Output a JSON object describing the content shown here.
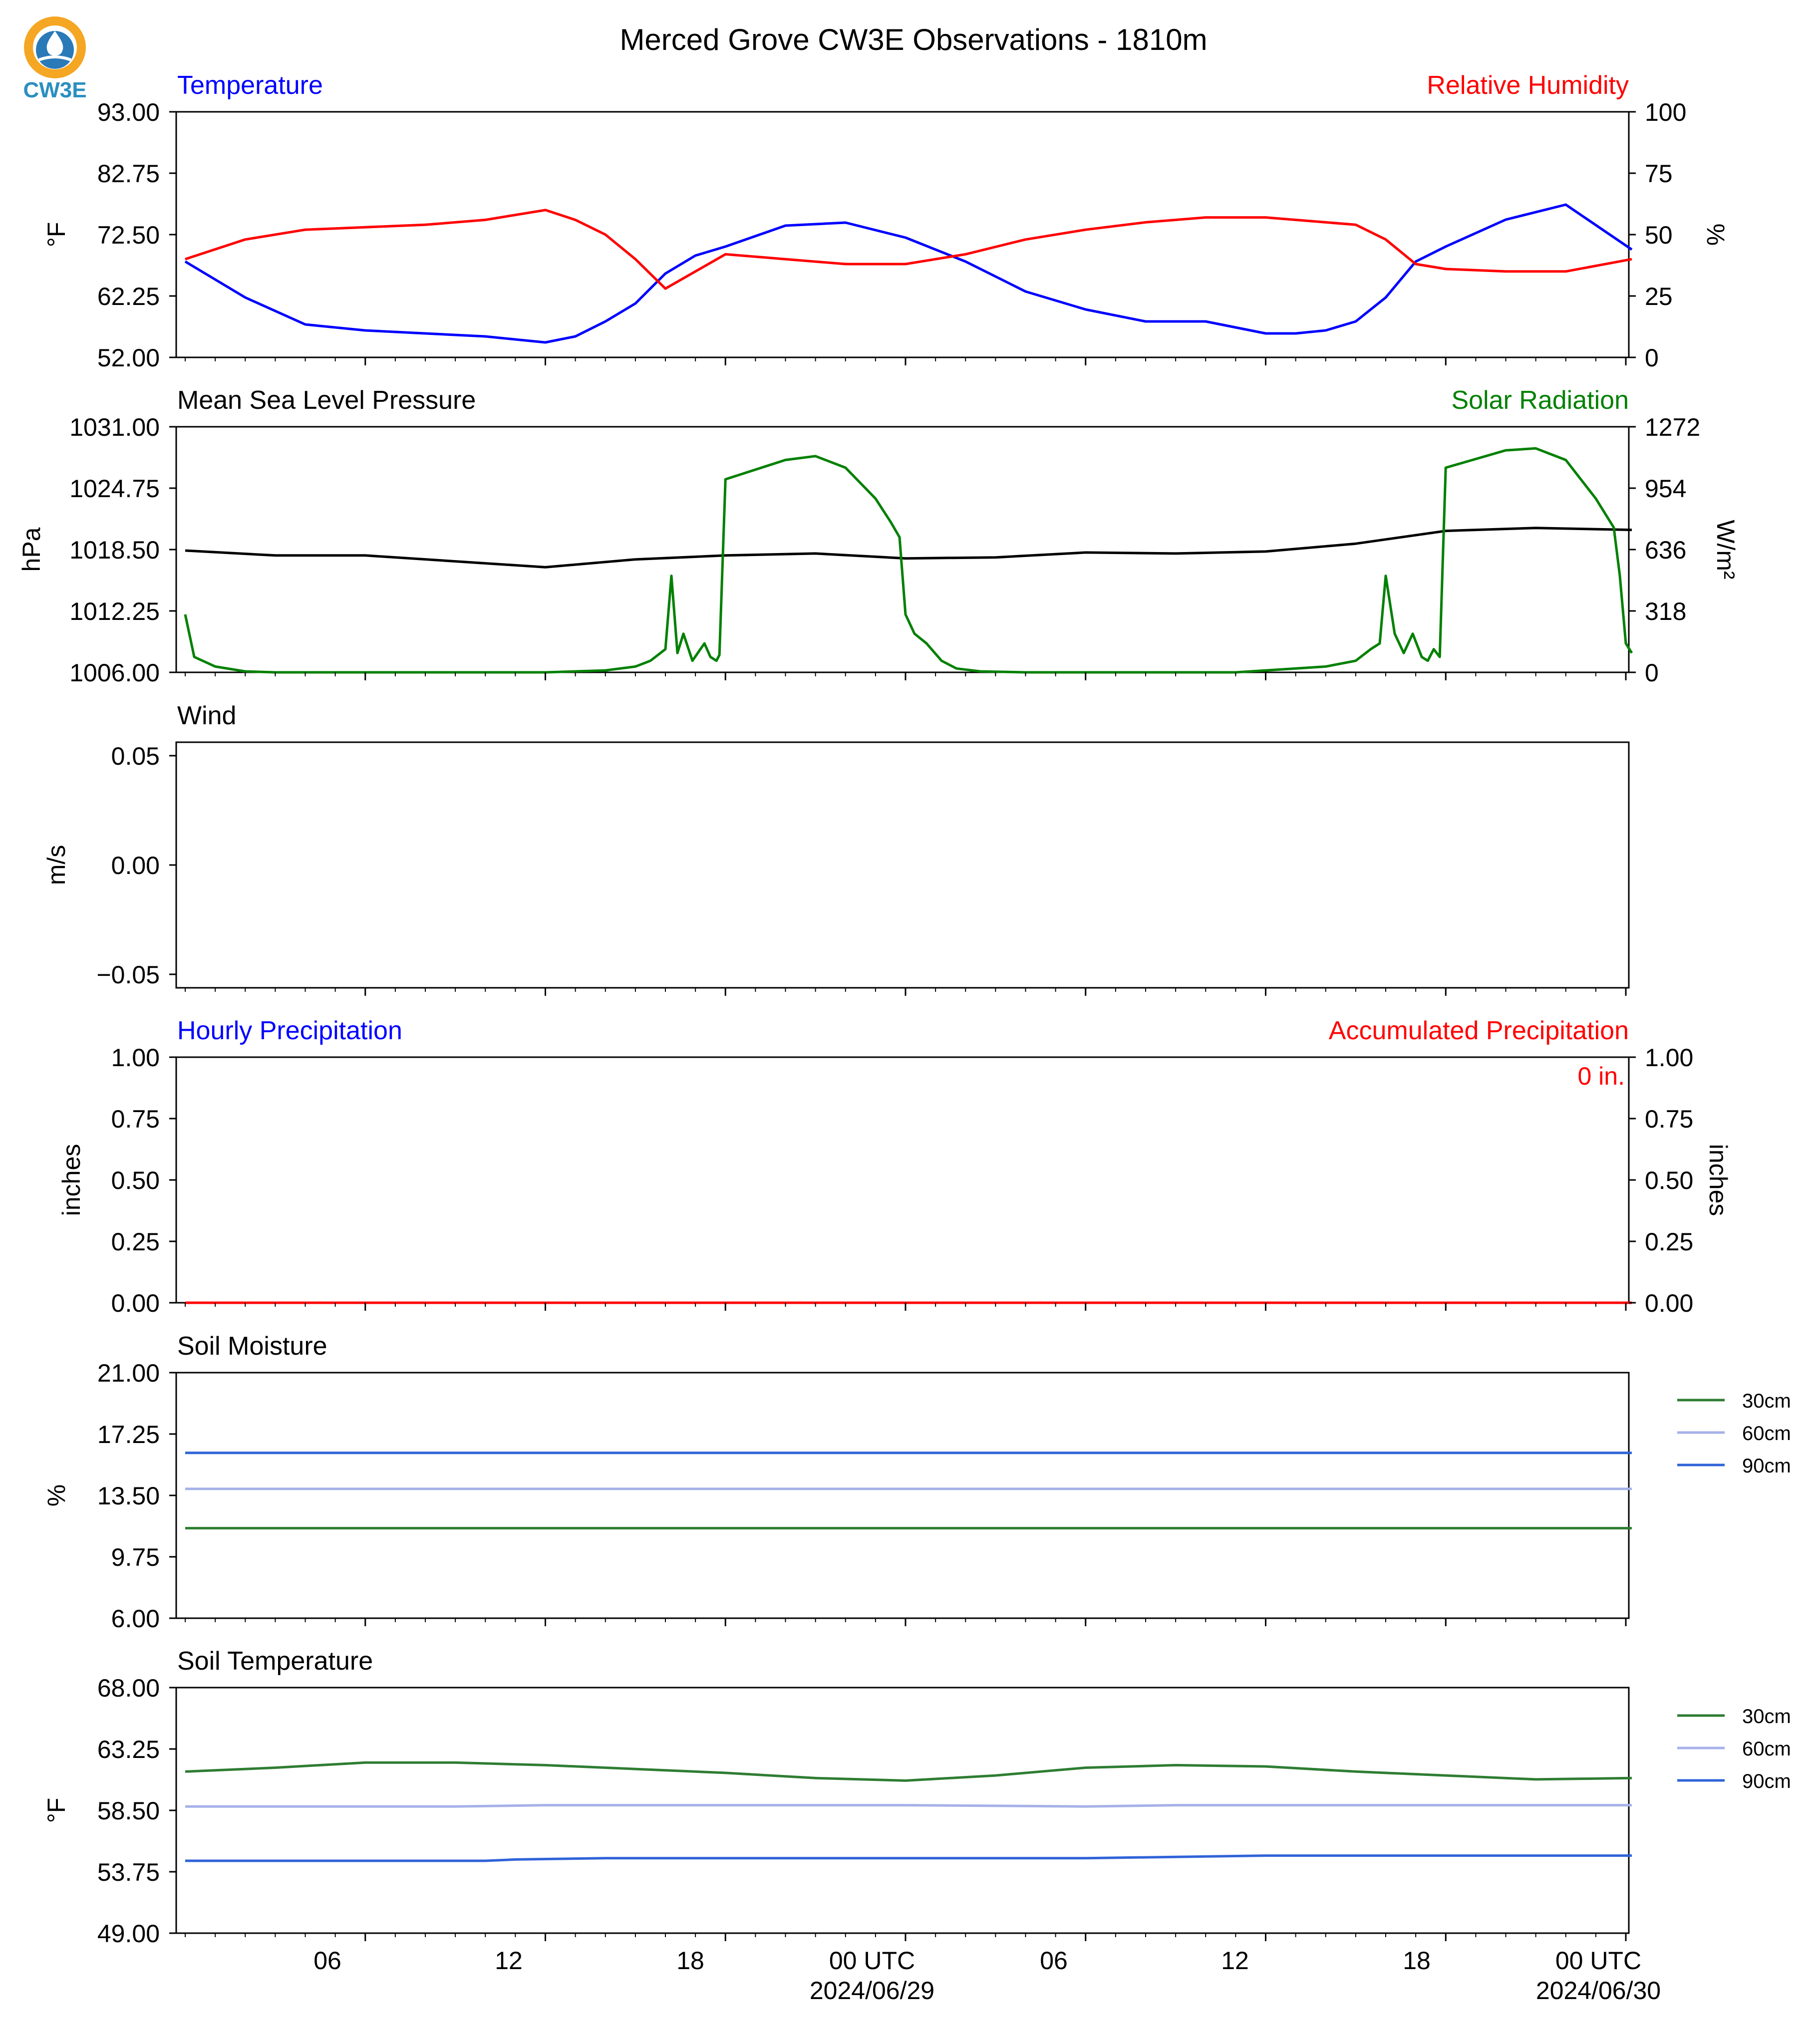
{
  "title": "Merced Grove CW3E Observations - 1810m",
  "logo": {
    "text": "CW3E",
    "icon": "cw3e-logo-icon"
  },
  "colors": {
    "temp": "#0000ff",
    "rh": "#ff0000",
    "mslp": "#000000",
    "solar": "#008000",
    "soil30": "#2e7d32",
    "soil60": "#a5b1e8",
    "soil90": "#2f63d8",
    "accum": "#ff0000"
  },
  "x_axis": {
    "ticks": [
      {
        "label": "06",
        "sub": ""
      },
      {
        "label": "12",
        "sub": ""
      },
      {
        "label": "18",
        "sub": ""
      },
      {
        "label": "00 UTC",
        "sub": "2024/06/29"
      },
      {
        "label": "06",
        "sub": ""
      },
      {
        "label": "12",
        "sub": ""
      },
      {
        "label": "18",
        "sub": ""
      },
      {
        "label": "00 UTC",
        "sub": "2024/06/30"
      }
    ]
  },
  "chart_data": [
    {
      "type": "line",
      "title_left": "Temperature",
      "title_right": "Relative Humidity",
      "ylabel": "°F",
      "ylabel_right": "%",
      "ylim": [
        52,
        93
      ],
      "ylim_right": [
        0,
        100
      ],
      "yticks": [
        "93.00",
        "82.75",
        "72.50",
        "62.25",
        "52.00"
      ],
      "yticks_right": [
        "100",
        "75",
        "50",
        "25",
        "0"
      ],
      "x_hours": [
        0,
        2,
        4,
        6,
        8,
        10,
        12,
        13,
        14,
        15,
        16,
        17,
        18,
        20,
        22,
        24,
        26,
        28,
        30,
        32,
        34,
        36,
        37,
        38,
        39,
        40,
        41,
        42,
        44,
        46,
        48.2
      ],
      "series": [
        {
          "name": "Temperature",
          "axis": "left",
          "values": [
            68,
            62,
            57.5,
            56.5,
            56,
            55.5,
            54.5,
            55.5,
            58,
            61,
            66,
            69,
            70.5,
            74,
            74.5,
            72,
            68,
            63,
            60,
            58,
            58,
            56,
            56,
            56.5,
            58,
            62,
            68,
            70.5,
            75,
            77.5,
            70
          ]
        },
        {
          "name": "Relative Humidity",
          "axis": "right",
          "values": [
            40,
            48,
            52,
            53,
            54,
            56,
            60,
            56,
            50,
            40,
            28,
            35,
            42,
            40,
            38,
            38,
            42,
            48,
            52,
            55,
            57,
            57,
            56,
            55,
            54,
            48,
            38,
            36,
            35,
            35,
            40
          ]
        }
      ]
    },
    {
      "type": "line",
      "title_left": "Mean Sea Level Pressure",
      "title_right": "Solar Radiation",
      "ylabel": "hPa",
      "ylabel_right": "W/m²",
      "ylim": [
        1006,
        1031
      ],
      "ylim_right": [
        0,
        1272
      ],
      "yticks": [
        "1031.00",
        "1024.75",
        "1018.50",
        "1012.25",
        "1006.00"
      ],
      "yticks_right": [
        "1272",
        "954",
        "636",
        "318",
        "0"
      ],
      "series": [
        {
          "name": "Mean Sea Level Pressure",
          "axis": "left",
          "x": [
            0,
            3,
            6,
            9,
            12,
            15,
            18,
            21,
            24,
            27,
            30,
            33,
            36,
            39,
            42,
            45,
            48.2
          ],
          "values": [
            1018.4,
            1017.9,
            1017.9,
            1017.3,
            1016.7,
            1017.5,
            1017.9,
            1018.1,
            1017.6,
            1017.7,
            1018.2,
            1018.1,
            1018.3,
            1019.1,
            1020.4,
            1020.7,
            1020.5
          ]
        },
        {
          "name": "Solar Radiation",
          "axis": "right",
          "x": [
            0,
            0.3,
            1,
            2,
            3,
            6,
            10,
            12,
            14,
            15,
            15.5,
            16,
            16.2,
            16.4,
            16.6,
            16.9,
            17.3,
            17.5,
            17.7,
            17.8,
            18,
            20,
            21,
            22,
            23,
            23.5,
            23.8,
            24,
            24.3,
            24.7,
            25.2,
            25.7,
            26.5,
            28,
            30,
            35,
            38,
            39,
            39.5,
            39.8,
            40,
            40.3,
            40.6,
            40.9,
            41.2,
            41.4,
            41.6,
            41.8,
            42,
            44,
            45,
            46,
            47,
            47.6,
            47.8,
            48,
            48.2
          ],
          "values": [
            300,
            80,
            30,
            5,
            0,
            0,
            0,
            0,
            10,
            30,
            60,
            120,
            500,
            100,
            200,
            60,
            150,
            80,
            60,
            90,
            1000,
            1100,
            1120,
            1060,
            900,
            780,
            700,
            300,
            200,
            150,
            60,
            20,
            5,
            0,
            0,
            0,
            30,
            60,
            120,
            150,
            500,
            200,
            100,
            200,
            80,
            60,
            120,
            80,
            1060,
            1150,
            1160,
            1100,
            900,
            750,
            500,
            150,
            100
          ]
        }
      ]
    },
    {
      "type": "line",
      "title_left": "Wind",
      "ylabel": "m/s",
      "ylim": [
        -0.055,
        0.055
      ],
      "yticks": [
        "0.05",
        "0.00",
        "−0.05"
      ],
      "series": []
    },
    {
      "type": "line",
      "title_left": "Hourly Precipitation",
      "title_right": "Accumulated Precipitation",
      "ylabel": "inches",
      "ylabel_right": "inches",
      "ylim": [
        0,
        1
      ],
      "ylim_right": [
        0,
        1
      ],
      "yticks": [
        "1.00",
        "0.75",
        "0.50",
        "0.25",
        "0.00"
      ],
      "yticks_right": [
        "1.00",
        "0.75",
        "0.50",
        "0.25",
        "0.00"
      ],
      "annotation": "0 in.",
      "series": [
        {
          "name": "Hourly Precipitation",
          "axis": "left",
          "x": [
            0,
            48.2
          ],
          "values": [
            0,
            0
          ]
        },
        {
          "name": "Accumulated Precipitation",
          "axis": "right",
          "x": [
            0,
            48.2
          ],
          "values": [
            0,
            0
          ]
        }
      ]
    },
    {
      "type": "line",
      "title_left": "Soil Moisture",
      "ylabel": "%",
      "ylim": [
        6,
        21
      ],
      "yticks": [
        "21.00",
        "17.25",
        "13.50",
        "9.75",
        "6.00"
      ],
      "legend": [
        "30cm",
        "60cm",
        "90cm"
      ],
      "series": [
        {
          "name": "30cm",
          "x": [
            0,
            48.2
          ],
          "values": [
            11.5,
            11.5
          ]
        },
        {
          "name": "60cm",
          "x": [
            0,
            48.2
          ],
          "values": [
            13.9,
            13.9
          ]
        },
        {
          "name": "90cm",
          "x": [
            0,
            48.2
          ],
          "values": [
            16.1,
            16.1
          ]
        }
      ]
    },
    {
      "type": "line",
      "title_left": "Soil Temperature",
      "ylabel": "°F",
      "ylim": [
        49,
        68
      ],
      "yticks": [
        "68.00",
        "63.25",
        "58.50",
        "53.75",
        "49.00"
      ],
      "legend": [
        "30cm",
        "60cm",
        "90cm"
      ],
      "series": [
        {
          "name": "30cm",
          "x": [
            0,
            3,
            6,
            9,
            12,
            15,
            18,
            21,
            24,
            27,
            30,
            33,
            36,
            39,
            42,
            45,
            48.2
          ],
          "values": [
            61.5,
            61.8,
            62.2,
            62.2,
            62.0,
            61.7,
            61.4,
            61.0,
            60.8,
            61.2,
            61.8,
            62.0,
            61.9,
            61.5,
            61.2,
            60.9,
            61.0
          ]
        },
        {
          "name": "60cm",
          "x": [
            0,
            9,
            12,
            24,
            30,
            33,
            36,
            48.2
          ],
          "values": [
            58.8,
            58.8,
            58.9,
            58.9,
            58.8,
            58.9,
            58.9,
            58.9
          ]
        },
        {
          "name": "90cm",
          "x": [
            0,
            10,
            11,
            14,
            20,
            30,
            33,
            36,
            48.2
          ],
          "values": [
            54.6,
            54.6,
            54.7,
            54.8,
            54.8,
            54.8,
            54.9,
            55.0,
            55.0
          ]
        }
      ]
    }
  ]
}
